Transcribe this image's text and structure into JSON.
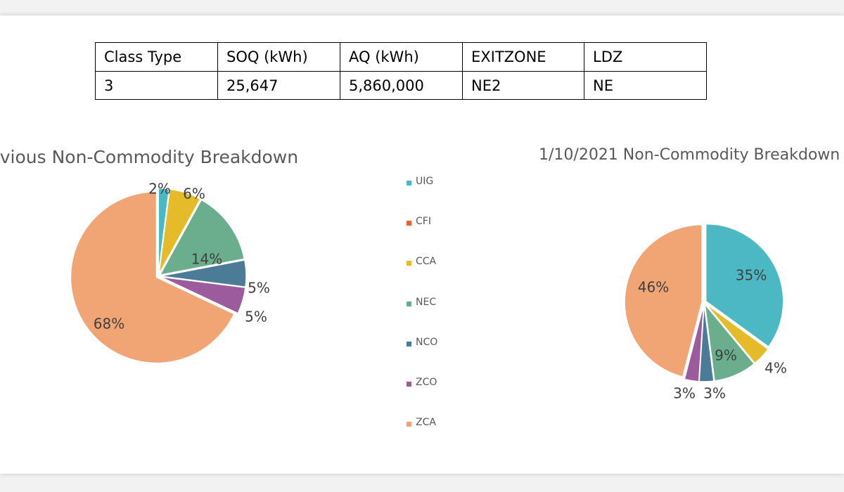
{
  "table": {
    "headers": [
      "Class Type",
      "SOQ (kWh)",
      "AQ (kWh)",
      "EXITZONE",
      "LDZ"
    ],
    "rows": [
      [
        "3",
        "25,647",
        "5,860,000",
        "NE2",
        "NE"
      ]
    ]
  },
  "legend": [
    {
      "name": "UIG",
      "color": "#4bb8c3"
    },
    {
      "name": "CFI",
      "color": "#e9622b"
    },
    {
      "name": "CCA",
      "color": "#e5bb2a"
    },
    {
      "name": "NEC",
      "color": "#6aae8e"
    },
    {
      "name": "NCO",
      "color": "#4b7b96"
    },
    {
      "name": "ZCO",
      "color": "#9b5b9d"
    },
    {
      "name": "ZCA",
      "color": "#f2a574"
    }
  ],
  "chart_data": [
    {
      "type": "pie",
      "title": "Previous Non-Commodity Breakdown",
      "slices": [
        {
          "name": "UIG",
          "value": 2,
          "label": "2%"
        },
        {
          "name": "CFI",
          "value": 0,
          "label": ""
        },
        {
          "name": "CCA",
          "value": 6,
          "label": "6%"
        },
        {
          "name": "NEC",
          "value": 14,
          "label": "14%"
        },
        {
          "name": "NCO",
          "value": 5,
          "label": "5%"
        },
        {
          "name": "ZCO",
          "value": 5,
          "label": "5%"
        },
        {
          "name": "ZCA",
          "value": 68,
          "label": "68%"
        }
      ]
    },
    {
      "type": "pie",
      "title": "1/10/2021 Non-Commodity Breakdown",
      "slices": [
        {
          "name": "UIG",
          "value": 35,
          "label": "35%"
        },
        {
          "name": "CFI",
          "value": 0,
          "label": ""
        },
        {
          "name": "CCA",
          "value": 4,
          "label": "4%"
        },
        {
          "name": "NEC",
          "value": 9,
          "label": "9%"
        },
        {
          "name": "NCO",
          "value": 3,
          "label": "3%"
        },
        {
          "name": "ZCO",
          "value": 3,
          "label": "3%"
        },
        {
          "name": "ZCA",
          "value": 46,
          "label": "46%"
        }
      ]
    }
  ]
}
